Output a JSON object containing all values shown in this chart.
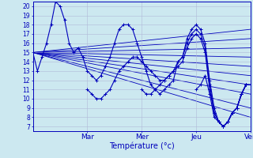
{
  "title": "Température (°c)",
  "ylabel_values": [
    7,
    8,
    9,
    10,
    11,
    12,
    13,
    14,
    15,
    16,
    17,
    18,
    19,
    20
  ],
  "ylim": [
    6.5,
    20.5
  ],
  "xlim": [
    0,
    96
  ],
  "xtick_positions": [
    24,
    48,
    72,
    96
  ],
  "xtick_labels": [
    "Mar",
    "Mer",
    "Jeu",
    "Ven"
  ],
  "bg_color": "#cce8f0",
  "grid_color": "#b0b8d8",
  "line_color": "#0000bb",
  "series": [
    {
      "xs": [
        0,
        2,
        4,
        6,
        8,
        10,
        12,
        14,
        16,
        18,
        20,
        22,
        24,
        26,
        28,
        30,
        32,
        34,
        36,
        38,
        40,
        42,
        44,
        46,
        48,
        50,
        52,
        54,
        56,
        58,
        60,
        62,
        64,
        66,
        68,
        70,
        72,
        74,
        76,
        78,
        80,
        82,
        84,
        86,
        88,
        90,
        92,
        94,
        96
      ],
      "ys": [
        15.0,
        13.0,
        14.5,
        16.0,
        18.0,
        20.5,
        20.0,
        18.5,
        16.0,
        15.0,
        15.5,
        14.5,
        13.0,
        12.5,
        12.0,
        12.5,
        13.5,
        14.5,
        16.0,
        17.5,
        18.0,
        18.0,
        17.5,
        16.0,
        14.5,
        13.0,
        11.5,
        11.0,
        10.5,
        11.0,
        11.5,
        12.0,
        14.0,
        14.5,
        16.5,
        17.5,
        18.0,
        17.5,
        16.0,
        12.0,
        9.0,
        7.5,
        7.0,
        7.5,
        8.5,
        9.0,
        10.5,
        11.5,
        11.5
      ]
    },
    {
      "xs": [
        24,
        26,
        28,
        30,
        32,
        34,
        36,
        38,
        40,
        42,
        44,
        46,
        48,
        50,
        52,
        54,
        56,
        58,
        60,
        62,
        64,
        66,
        68,
        70,
        72,
        74,
        76,
        78,
        80,
        82,
        84,
        86,
        88,
        90,
        92,
        94,
        96
      ],
      "ys": [
        11.0,
        10.5,
        10.0,
        10.0,
        10.5,
        11.0,
        12.0,
        13.0,
        13.5,
        14.0,
        14.5,
        14.5,
        14.0,
        13.5,
        13.0,
        12.5,
        12.0,
        12.0,
        12.5,
        13.0,
        14.0,
        14.5,
        16.0,
        17.0,
        17.5,
        17.0,
        15.5,
        11.5,
        8.5,
        7.5,
        7.0,
        7.5,
        8.5,
        9.0,
        10.5,
        11.5,
        11.5
      ]
    },
    {
      "xs": [
        48,
        50,
        52,
        54,
        56,
        58,
        60,
        62,
        64,
        66,
        68,
        70,
        72,
        74,
        76,
        78,
        80,
        82,
        84,
        86,
        88,
        90,
        92,
        94,
        96
      ],
      "ys": [
        11.0,
        10.5,
        10.5,
        11.0,
        11.5,
        12.0,
        12.5,
        13.0,
        13.5,
        14.0,
        15.5,
        16.5,
        17.0,
        16.5,
        15.0,
        11.0,
        8.5,
        7.5,
        7.0,
        7.5,
        8.5,
        9.0,
        10.5,
        11.5,
        11.5
      ]
    },
    {
      "xs": [
        72,
        74,
        76,
        78,
        80,
        82,
        84,
        86,
        88,
        90,
        92,
        94,
        96
      ],
      "ys": [
        11.0,
        11.5,
        12.5,
        10.5,
        8.0,
        7.5,
        7.0,
        7.5,
        8.5,
        9.0,
        10.5,
        11.5,
        11.5
      ]
    },
    {
      "xs": [
        84,
        86,
        88,
        90,
        92,
        94,
        96
      ],
      "ys": [
        7.0,
        7.5,
        8.5,
        9.0,
        10.5,
        11.5,
        11.5
      ]
    }
  ],
  "straight_lines": [
    {
      "x0": 0,
      "y0": 15.0,
      "x1": 96,
      "y1": 17.5
    },
    {
      "x0": 0,
      "y0": 15.0,
      "x1": 96,
      "y1": 16.5
    },
    {
      "x0": 0,
      "y0": 15.0,
      "x1": 96,
      "y1": 15.5
    },
    {
      "x0": 0,
      "y0": 15.0,
      "x1": 96,
      "y1": 14.5
    },
    {
      "x0": 0,
      "y0": 15.0,
      "x1": 96,
      "y1": 13.5
    },
    {
      "x0": 0,
      "y0": 15.0,
      "x1": 96,
      "y1": 12.5
    },
    {
      "x0": 0,
      "y0": 15.0,
      "x1": 96,
      "y1": 11.5
    },
    {
      "x0": 0,
      "y0": 15.0,
      "x1": 96,
      "y1": 10.5
    },
    {
      "x0": 0,
      "y0": 15.0,
      "x1": 96,
      "y1": 9.0
    },
    {
      "x0": 0,
      "y0": 15.0,
      "x1": 96,
      "y1": 8.0
    }
  ]
}
